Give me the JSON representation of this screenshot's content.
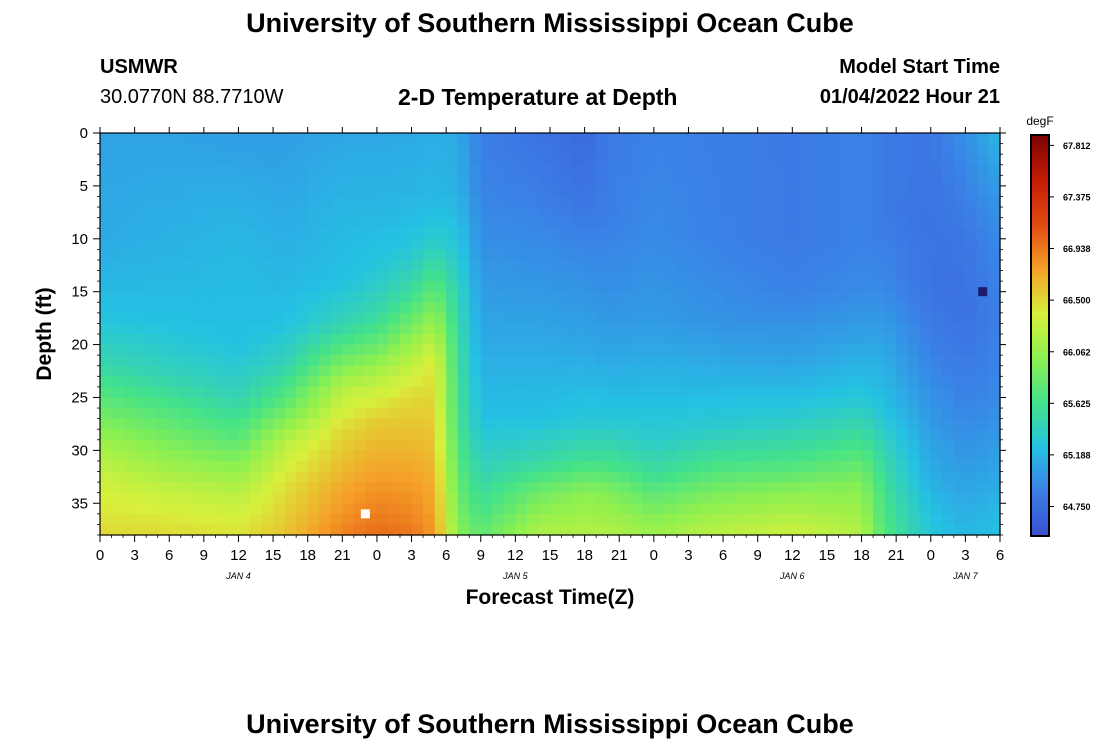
{
  "header": {
    "title": "University of Southern Mississippi Ocean Cube",
    "station": "USMWR",
    "coordinates": "30.0770N  88.7710W",
    "subtitle": "2-D Temperature at Depth",
    "model_start_label": "Model Start Time",
    "model_start_value": "01/04/2022 Hour 21"
  },
  "footer": {
    "title": "University of Southern Mississippi Ocean Cube"
  },
  "chart_data": {
    "type": "heatmap",
    "title": "2-D Temperature at Depth",
    "xlabel": "Forecast Time(Z)",
    "ylabel": "Depth (ft)",
    "x_tick_labels": [
      "0",
      "3",
      "6",
      "9",
      "12",
      "15",
      "18",
      "21",
      "0",
      "3",
      "6",
      "9",
      "12",
      "15",
      "18",
      "21",
      "0",
      "3",
      "6",
      "9",
      "12",
      "15",
      "18",
      "21",
      "0",
      "3",
      "6"
    ],
    "x_range_hours": [
      0,
      78
    ],
    "date_labels": [
      {
        "label": "JAN 4",
        "hour": 12
      },
      {
        "label": "JAN 5",
        "hour": 36
      },
      {
        "label": "JAN 6",
        "hour": 60
      },
      {
        "label": "JAN 7",
        "hour": 75
      }
    ],
    "y_ticks": [
      0,
      5,
      10,
      15,
      20,
      25,
      30,
      35
    ],
    "y_range": [
      0,
      38
    ],
    "y_inverted": true,
    "colorbar": {
      "unit": "degF",
      "min": 64.5,
      "max": 67.9,
      "tick_labels": [
        "67.812",
        "67.375",
        "66.938",
        "66.500",
        "66.062",
        "65.625",
        "65.188",
        "64.750"
      ]
    },
    "colormap": [
      "#3a4fd0",
      "#3b7ee6",
      "#25c2e3",
      "#44e28a",
      "#8ef04f",
      "#d7f03c",
      "#f5a028",
      "#e04a12",
      "#c21b04",
      "#7a0402"
    ],
    "temperature_profiles": [
      {
        "hour": 0,
        "depths": [
          0,
          10,
          17,
          22,
          27,
          30,
          33,
          38
        ],
        "temps": [
          65.08,
          65.12,
          65.25,
          65.5,
          65.9,
          66.15,
          66.35,
          66.5
        ]
      },
      {
        "hour": 6,
        "depths": [
          0,
          10,
          18,
          23,
          27,
          31,
          34,
          38
        ],
        "temps": [
          65.08,
          65.16,
          65.25,
          65.45,
          65.75,
          66.05,
          66.3,
          66.5
        ]
      },
      {
        "hour": 12,
        "depths": [
          0,
          10,
          20,
          25,
          29,
          32,
          35,
          38
        ],
        "temps": [
          65.05,
          65.2,
          65.25,
          65.45,
          65.75,
          66.05,
          66.3,
          66.45
        ]
      },
      {
        "hour": 16,
        "depths": [
          0,
          10,
          18,
          22,
          26,
          29,
          33,
          38
        ],
        "temps": [
          65.05,
          65.15,
          65.25,
          65.45,
          65.8,
          66.2,
          66.45,
          66.6
        ]
      },
      {
        "hour": 21,
        "depths": [
          0,
          8,
          14,
          18,
          21,
          24,
          28,
          38
        ],
        "temps": [
          65.1,
          65.2,
          65.25,
          65.45,
          65.8,
          66.2,
          66.5,
          66.9
        ]
      },
      {
        "hour": 24,
        "depths": [
          0,
          8,
          13,
          17,
          20,
          23,
          27,
          38
        ],
        "temps": [
          65.1,
          65.2,
          65.3,
          65.5,
          65.8,
          66.2,
          66.55,
          67.0
        ]
      },
      {
        "hour": 27,
        "depths": [
          0,
          7,
          11,
          15,
          18,
          21,
          25,
          38
        ],
        "temps": [
          65.12,
          65.2,
          65.3,
          65.55,
          65.85,
          66.2,
          66.5,
          66.95
        ]
      },
      {
        "hour": 29,
        "depths": [
          0,
          6,
          10,
          13,
          16,
          19,
          22,
          38
        ],
        "temps": [
          65.14,
          65.2,
          65.35,
          65.6,
          65.9,
          66.2,
          66.45,
          66.8
        ]
      },
      {
        "hour": 31,
        "depths": [
          0,
          5,
          10,
          15,
          20,
          28,
          33,
          38
        ],
        "temps": [
          65.12,
          65.16,
          65.28,
          65.45,
          65.55,
          65.65,
          65.8,
          66.0
        ]
      },
      {
        "hour": 33,
        "depths": [
          0,
          6,
          12,
          20,
          27,
          32,
          36,
          38
        ],
        "temps": [
          64.88,
          64.92,
          65.0,
          65.12,
          65.25,
          65.45,
          65.65,
          65.8
        ]
      },
      {
        "hour": 38,
        "depths": [
          0,
          6,
          12,
          20,
          27,
          31,
          34,
          38
        ],
        "temps": [
          64.8,
          64.88,
          64.98,
          65.12,
          65.25,
          65.5,
          65.85,
          66.2
        ]
      },
      {
        "hour": 42,
        "depths": [
          0,
          5,
          12,
          20,
          27,
          31,
          34,
          38
        ],
        "temps": [
          64.72,
          64.78,
          64.95,
          65.1,
          65.3,
          65.6,
          66.0,
          66.2
        ]
      },
      {
        "hour": 44,
        "depths": [
          0,
          8,
          15,
          21,
          27,
          31,
          34,
          38
        ],
        "temps": [
          64.85,
          64.88,
          64.98,
          65.1,
          65.3,
          65.6,
          65.95,
          66.2
        ]
      },
      {
        "hour": 48,
        "depths": [
          0,
          10,
          18,
          24,
          29,
          32,
          35,
          38
        ],
        "temps": [
          64.9,
          64.95,
          65.05,
          65.2,
          65.35,
          65.55,
          65.85,
          66.1
        ]
      },
      {
        "hour": 53,
        "depths": [
          0,
          10,
          18,
          24,
          28,
          32,
          35,
          38
        ],
        "temps": [
          64.88,
          64.9,
          65.0,
          65.2,
          65.35,
          65.7,
          66.0,
          66.25
        ]
      },
      {
        "hour": 60,
        "depths": [
          0,
          10,
          15,
          22,
          27,
          31,
          34,
          38
        ],
        "temps": [
          64.85,
          64.85,
          64.9,
          65.1,
          65.35,
          65.65,
          66.0,
          66.35
        ]
      },
      {
        "hour": 66,
        "depths": [
          0,
          10,
          15,
          20,
          25,
          29,
          33,
          38
        ],
        "temps": [
          64.9,
          64.9,
          64.95,
          65.1,
          65.3,
          65.6,
          65.95,
          66.2
        ]
      },
      {
        "hour": 68,
        "depths": [
          0,
          8,
          15,
          20,
          26,
          30,
          34,
          38
        ],
        "temps": [
          64.85,
          64.85,
          64.95,
          65.1,
          65.25,
          65.45,
          65.6,
          65.7
        ]
      },
      {
        "hour": 72,
        "depths": [
          0,
          8,
          15,
          22,
          28,
          33,
          36,
          38
        ],
        "temps": [
          64.82,
          64.8,
          64.8,
          64.92,
          65.05,
          65.15,
          65.25,
          65.3
        ]
      },
      {
        "hour": 75,
        "depths": [
          0,
          5,
          10,
          17,
          25,
          32,
          36,
          38
        ],
        "temps": [
          64.98,
          64.9,
          64.82,
          64.78,
          64.9,
          65.05,
          65.15,
          65.2
        ]
      },
      {
        "hour": 78,
        "depths": [
          0,
          5,
          10,
          17,
          25,
          32,
          36,
          38
        ],
        "temps": [
          65.2,
          65.05,
          64.95,
          64.88,
          64.95,
          65.1,
          65.22,
          65.25
        ]
      }
    ],
    "markers": [
      {
        "name": "max",
        "hour": 23,
        "depth": 36,
        "color": "#ffffff"
      },
      {
        "name": "min",
        "hour": 76.5,
        "depth": 15,
        "color": "#1c1c6a"
      }
    ]
  }
}
